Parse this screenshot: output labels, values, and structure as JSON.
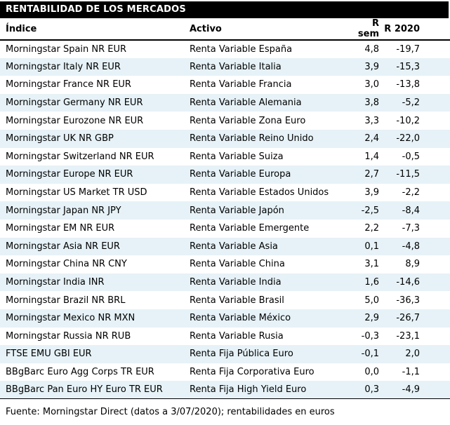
{
  "title": "RENTABILIDAD DE LOS MERCADOS",
  "footer": "Fuente: Morningstar Direct (datos a 3/07/2020); rentabilidades en euros",
  "colors": {
    "stripe": "#e6f2f7",
    "header_bg": "#000000",
    "header_text": "#ffffff"
  },
  "chart_data": {
    "type": "table",
    "title": "RENTABILIDAD DE LOS MERCADOS",
    "columns": [
      "Índice",
      "Activo",
      "R sem",
      "R 2020"
    ],
    "rows": [
      [
        "Morningstar Spain NR EUR",
        "Renta Variable España",
        "4,8",
        "-19,7"
      ],
      [
        "Morningstar Italy NR EUR",
        "Renta Variable Italia",
        "3,9",
        "-15,3"
      ],
      [
        "Morningstar France NR EUR",
        "Renta Variable Francia",
        "3,0",
        "-13,8"
      ],
      [
        "Morningstar Germany NR EUR",
        "Renta Variable Alemania",
        "3,8",
        "-5,2"
      ],
      [
        "Morningstar Eurozone NR EUR",
        "Renta Variable Zona Euro",
        "3,3",
        "-10,2"
      ],
      [
        "Morningstar UK NR GBP",
        "Renta Variable Reino Unido",
        "2,4",
        "-22,0"
      ],
      [
        "Morningstar Switzerland NR EUR",
        "Renta Variable Suiza",
        "1,4",
        "-0,5"
      ],
      [
        "Morningstar Europe NR EUR",
        "Renta Variable Europa",
        "2,7",
        "-11,5"
      ],
      [
        "Morningstar US Market TR USD",
        "Renta Variable Estados Unidos",
        "3,9",
        "-2,2"
      ],
      [
        "Morningstar Japan NR JPY",
        "Renta Variable Japón",
        "-2,5",
        "-8,4"
      ],
      [
        "Morningstar EM NR EUR",
        "Renta Variable Emergente",
        "2,2",
        "-7,3"
      ],
      [
        "Morningstar Asia NR EUR",
        "Renta Variable Asia",
        "0,1",
        "-4,8"
      ],
      [
        "Morningstar China NR CNY",
        "Renta Variable China",
        "3,1",
        "8,9"
      ],
      [
        "Morningstar India INR",
        "Renta Variable India",
        "1,6",
        "-14,6"
      ],
      [
        "Morningstar Brazil NR BRL",
        "Renta Variable Brasil",
        "5,0",
        "-36,3"
      ],
      [
        "Morningstar Mexico NR MXN",
        "Renta Variable México",
        "2,9",
        "-26,7"
      ],
      [
        "Morningstar Russia NR RUB",
        "Renta Variable Rusia",
        "-0,3",
        "-23,1"
      ],
      [
        "FTSE EMU GBI EUR",
        "Renta Fija Pública Euro",
        "-0,1",
        "2,0"
      ],
      [
        "BBgBarc Euro Agg Corps TR EUR",
        "Renta Fija Corporativa Euro",
        "0,0",
        "-1,1"
      ],
      [
        "BBgBarc Pan Euro HY Euro TR EUR",
        "Renta Fija High Yield Euro",
        "0,3",
        "-4,9"
      ]
    ]
  }
}
